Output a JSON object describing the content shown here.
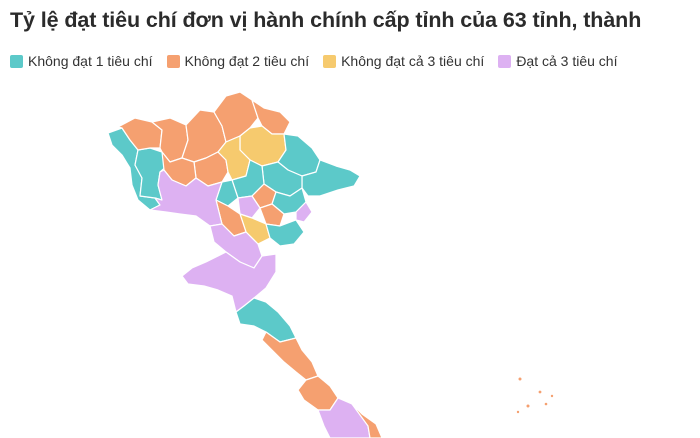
{
  "title": "Tỷ lệ đạt tiêu chí đơn vị hành chính cấp tỉnh của 63 tỉnh, thành",
  "legend": [
    {
      "label": "Không đạt 1 tiêu chí",
      "color": "#5cc9c9"
    },
    {
      "label": "Không đạt 2 tiêu chí",
      "color": "#f5a070"
    },
    {
      "label": "Không đạt cả 3 tiêu chí",
      "color": "#f6ca6e"
    },
    {
      "label": "Đạt cả 3 tiêu chí",
      "color": "#ddb1f2"
    }
  ]
}
